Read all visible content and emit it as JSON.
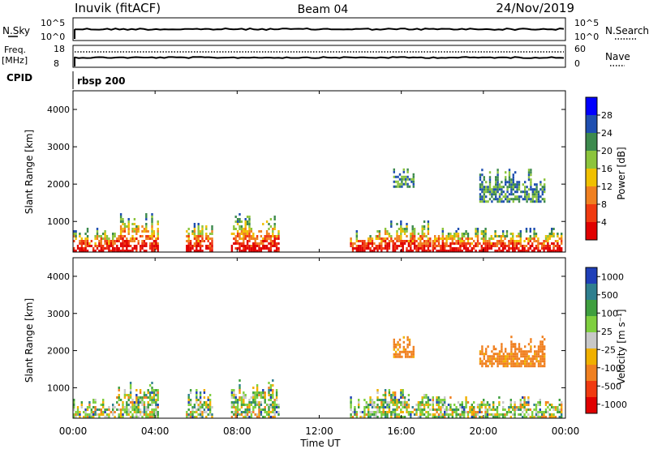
{
  "header": {
    "station": "Inuvik (fitACF)",
    "beam": "Beam 04",
    "date": "24/Nov/2019"
  },
  "nsky_panel": {
    "left_label": "N.Sky",
    "right_label": "N.Search",
    "left_ticks": [
      "10^5",
      "10^0"
    ],
    "right_ticks": [
      "10^5",
      "10^0"
    ]
  },
  "freq_panel": {
    "left_label_line1": "Freq.",
    "left_label_line2": "[MHz]",
    "right_label": "Nave",
    "left_ticks": [
      "18",
      "8"
    ],
    "right_ticks": [
      "60",
      "0"
    ]
  },
  "cpid": {
    "label": "CPID",
    "value": "rbsp 200"
  },
  "chart_data": [
    {
      "type": "heatmap",
      "title": "",
      "xlabel": "",
      "ylabel": "Slant Range [km]",
      "ylim": [
        180,
        4500
      ],
      "yticks": [
        "1000",
        "2000",
        "3000",
        "4000"
      ],
      "xlim": [
        "00:00",
        "24:00"
      ],
      "colorbar": {
        "label": "Power [dB]",
        "ticks": [
          "4",
          "8",
          "12",
          "16",
          "20",
          "24",
          "28"
        ],
        "colors": [
          "#0000ff",
          "#1f4fb0",
          "#3d8a4d",
          "#8cc43c",
          "#f0c000",
          "#f08020",
          "#f03a10",
          "#e00000"
        ]
      },
      "scatter_regions_hours": [
        [
          0.0,
          2.1,
          180,
          850
        ],
        [
          2.1,
          4.2,
          180,
          1200
        ],
        [
          5.5,
          6.8,
          180,
          1000
        ],
        [
          7.7,
          10.1,
          180,
          1250
        ],
        [
          13.5,
          14.8,
          180,
          800
        ],
        [
          14.8,
          17.5,
          180,
          1050
        ],
        [
          17.5,
          23.9,
          180,
          800
        ],
        [
          15.6,
          16.6,
          1900,
          2400
        ],
        [
          19.8,
          23.0,
          1500,
          2400
        ]
      ]
    },
    {
      "type": "heatmap",
      "title": "",
      "xlabel": "Time UT",
      "ylabel": "Slant Range [km]",
      "ylim": [
        180,
        4500
      ],
      "yticks": [
        "1000",
        "2000",
        "3000",
        "4000"
      ],
      "xlim": [
        "00:00",
        "24:00"
      ],
      "xticks": [
        "00:00",
        "04:00",
        "08:00",
        "12:00",
        "16:00",
        "20:00",
        "00:00"
      ],
      "colorbar": {
        "label": "Velocity [m s⁻¹]",
        "ticks": [
          "1000",
          "500",
          "100",
          "25",
          "-25",
          "-100",
          "-500",
          "-1000"
        ],
        "colors": [
          "#1f3fb8",
          "#2f7f8f",
          "#3f9f3f",
          "#7fcf3f",
          "#c8c8c8",
          "#f0b000",
          "#f08020",
          "#f03a10",
          "#e00000"
        ]
      },
      "scatter_regions_hours": [
        [
          0.0,
          2.1,
          180,
          700
        ],
        [
          2.1,
          4.2,
          180,
          1150
        ],
        [
          5.5,
          6.8,
          180,
          950
        ],
        [
          7.7,
          10.1,
          180,
          1250
        ],
        [
          13.5,
          14.8,
          180,
          800
        ],
        [
          14.8,
          17.5,
          180,
          1000
        ],
        [
          17.5,
          23.9,
          180,
          800
        ],
        [
          15.6,
          16.6,
          1800,
          2450
        ],
        [
          19.8,
          23.0,
          1550,
          2400
        ]
      ]
    }
  ]
}
